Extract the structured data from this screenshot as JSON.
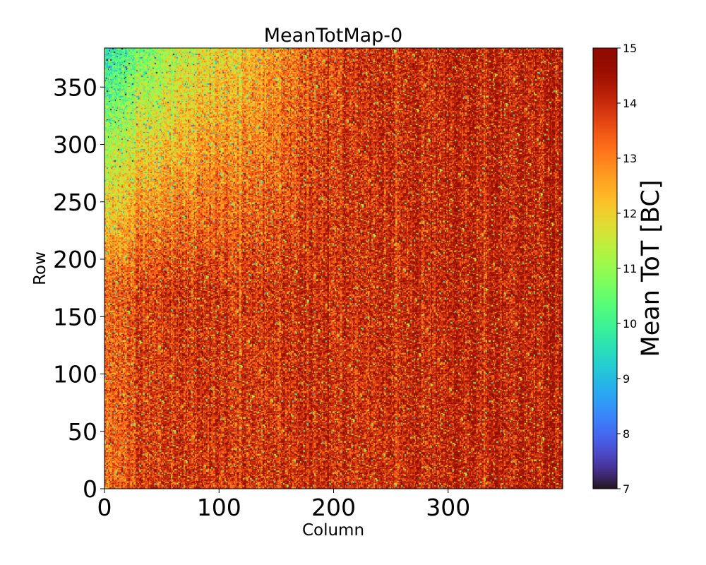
{
  "chart_data": {
    "type": "heatmap",
    "title": "MeanTotMap-0",
    "xlabel": "Column",
    "ylabel": "Row",
    "xlim": [
      0,
      400
    ],
    "ylim": [
      0,
      384
    ],
    "x_ticks": [
      0,
      100,
      200,
      300
    ],
    "y_ticks": [
      0,
      50,
      100,
      150,
      200,
      250,
      300,
      350
    ],
    "colorbar": {
      "label": "Mean ToT [BC]",
      "range": [
        7,
        15
      ],
      "ticks": [
        7,
        8,
        9,
        10,
        11,
        12,
        13,
        14,
        15
      ],
      "colormap": "turbo"
    },
    "grid_size": {
      "columns": 400,
      "rows": 384
    },
    "value_summary": {
      "typical": 13.8,
      "top_left_region": 11.5,
      "maximum": 15,
      "noise": "pixel-level random variation with vertical column stripes"
    }
  },
  "colors": {
    "background": "#ffffff",
    "axis": "#000000"
  }
}
